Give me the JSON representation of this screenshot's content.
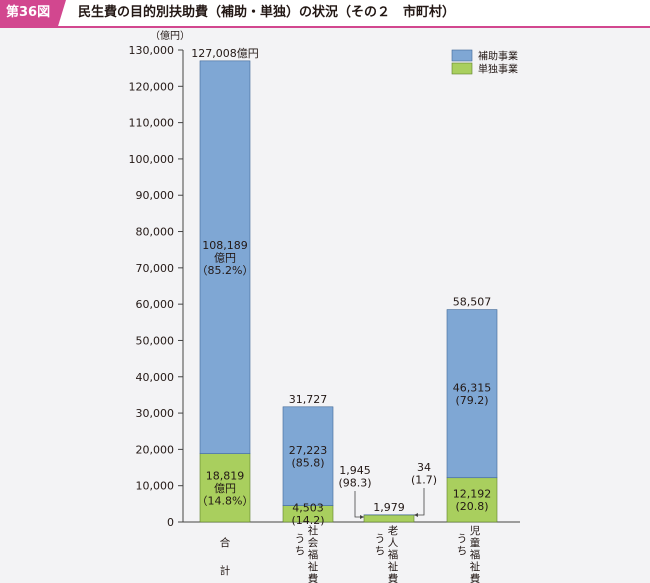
{
  "figure": {
    "number": "第36図",
    "title": "民生費の目的別扶助費（補助・単独）の状況（その２　市町村）"
  },
  "colors": {
    "accent": "#d2478f",
    "subsidized": "#7fa7d4",
    "independent": "#a9cf5e",
    "axis": "#444444"
  },
  "chart_data": {
    "type": "bar",
    "stacked": true,
    "unit_label": "（億円）",
    "ylim": [
      0,
      130000
    ],
    "y_ticks": [
      "0",
      "10,000",
      "20,000",
      "30,000",
      "40,000",
      "50,000",
      "60,000",
      "70,000",
      "80,000",
      "90,000",
      "100,000",
      "110,000",
      "120,000",
      "130,000"
    ],
    "grid": false,
    "legend_position": "top-right",
    "categories": [
      "合計",
      "うち社会福祉費",
      "うち老人福祉費",
      "うち児童福祉費"
    ],
    "series": [
      {
        "name": "単独事業",
        "values": [
          18819,
          4503,
          1945,
          12192
        ]
      },
      {
        "name": "補助事業",
        "values": [
          108189,
          27223,
          34,
          46315
        ]
      }
    ],
    "totals": [
      "127,008億円",
      "31,727",
      "1,979",
      "58,507"
    ],
    "value_labels": {
      "subsidized": [
        [
          "108,189",
          "億円",
          "（85.2%）"
        ],
        [
          "27,223",
          "(85.8)"
        ],
        [
          "34",
          "(1.7)"
        ],
        [
          "46,315",
          "(79.2)"
        ]
      ],
      "independent": [
        [
          "18,819",
          "億円",
          "（14.8%）"
        ],
        [
          "4,503",
          "(14.2)"
        ],
        [
          "1,945",
          "(98.3)"
        ],
        [
          "12,192",
          "(20.8)"
        ]
      ]
    }
  }
}
